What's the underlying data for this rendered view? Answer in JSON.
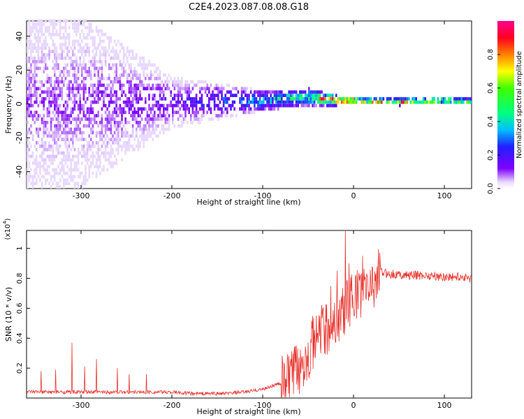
{
  "title": "C2E4.2023.087.08.08.G18",
  "colors": {
    "spectrum_low": "#6a00f0",
    "spectrum_mid": "#00ff80",
    "spectrum_high": "#ff0020",
    "snr_line": "#e8302a"
  },
  "chart_data": [
    {
      "type": "heatmap",
      "title": "C2E4.2023.087.08.08.G18",
      "xlabel": "Height of straight line (km)",
      "ylabel": "Frequency (Hz)",
      "xlim": [
        -360,
        130
      ],
      "ylim": [
        -50,
        49
      ],
      "xticks": [
        -300,
        -200,
        -100,
        0,
        100
      ],
      "yticks": [
        -40,
        -20,
        0,
        20,
        40
      ],
      "colorbar": {
        "label": "Normalized spectral amplitude",
        "range": [
          0,
          1
        ],
        "ticks": [
          0.0,
          0.2,
          0.4,
          0.6,
          0.8
        ]
      },
      "description_points": [
        {
          "x": -300,
          "center_hz": 0,
          "spread_hz": 50,
          "amplitude": 0.1
        },
        {
          "x": -200,
          "center_hz": 0,
          "spread_hz": 15,
          "amplitude": 0.15
        },
        {
          "x": -100,
          "center_hz": 1,
          "spread_hz": 6,
          "amplitude": 0.35
        },
        {
          "x": -50,
          "center_hz": 3,
          "spread_hz": 5,
          "amplitude": 0.5
        },
        {
          "x": -20,
          "center_hz": 1,
          "spread_hz": 3,
          "amplitude": 0.9
        },
        {
          "x": 0,
          "center_hz": 1,
          "spread_hz": 2,
          "amplitude": 0.8
        },
        {
          "x": 50,
          "center_hz": 0,
          "spread_hz": 2,
          "amplitude": 0.7
        },
        {
          "x": 100,
          "center_hz": 1,
          "spread_hz": 2,
          "amplitude": 0.6
        },
        {
          "x": 130,
          "center_hz": 0,
          "spread_hz": 2,
          "amplitude": 0.55
        }
      ]
    },
    {
      "type": "line",
      "xlabel": "Height of straight line (km)",
      "ylabel": "SNR (10 * v/v)",
      "ymultiplier": "(x10",
      "ymultiplier_exp": "4",
      "xlim": [
        -360,
        130
      ],
      "ylim": [
        0.0,
        1.12
      ],
      "xticks": [
        -300,
        -200,
        -100,
        0,
        100
      ],
      "yticks": [
        0.2,
        0.4,
        0.6,
        0.8,
        1.0
      ],
      "series": [
        {
          "x": [
            -360,
            -340,
            -320,
            -300,
            -280,
            -260,
            -240,
            -220,
            -200,
            -180,
            -160,
            -140,
            -120,
            -100,
            -90,
            -80,
            -70,
            -60,
            -50,
            -40,
            -30,
            -20,
            -15,
            -10,
            -5,
            0,
            10,
            20,
            30,
            40,
            60,
            80,
            100,
            120,
            130
          ],
          "y": [
            0.04,
            0.04,
            0.04,
            0.04,
            0.04,
            0.04,
            0.04,
            0.04,
            0.04,
            0.03,
            0.03,
            0.03,
            0.04,
            0.06,
            0.08,
            0.1,
            0.14,
            0.2,
            0.3,
            0.4,
            0.45,
            0.52,
            0.55,
            0.6,
            0.63,
            0.68,
            0.72,
            0.76,
            0.84,
            0.83,
            0.82,
            0.82,
            0.81,
            0.81,
            0.8
          ]
        }
      ],
      "spikes": [
        {
          "x": -344,
          "y": 0.18
        },
        {
          "x": -328,
          "y": 0.19
        },
        {
          "x": -310,
          "y": 0.37
        },
        {
          "x": -296,
          "y": 0.21
        },
        {
          "x": -283,
          "y": 0.26
        },
        {
          "x": -260,
          "y": 0.2
        },
        {
          "x": -247,
          "y": 0.16
        },
        {
          "x": -228,
          "y": 0.16
        },
        {
          "x": -45,
          "y": 0.55
        },
        {
          "x": -35,
          "y": 0.62
        },
        {
          "x": -25,
          "y": 0.75
        },
        {
          "x": -18,
          "y": 0.85
        },
        {
          "x": -9,
          "y": 1.12
        },
        {
          "x": -5,
          "y": 0.9
        },
        {
          "x": 10,
          "y": 0.95
        }
      ]
    }
  ]
}
